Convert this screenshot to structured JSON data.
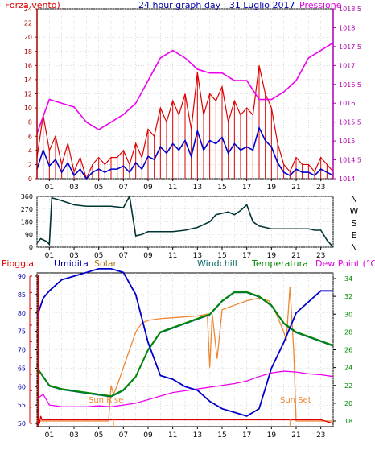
{
  "panel1": {
    "title": "24 hour graph day : 31 Luglio 2017",
    "left_label": "Forza vento)",
    "right_label": "Pressione",
    "left_ticks": [
      "0",
      "2",
      "4",
      "6",
      "8",
      "10",
      "12",
      "14",
      "16",
      "18",
      "20",
      "22",
      "24"
    ],
    "right_ticks": [
      "1014",
      "1014.5",
      "1015",
      "1015.5",
      "1016",
      "1016.5",
      "1017",
      "1017.5",
      "1018",
      "1018.5"
    ],
    "x_ticks": [
      "01",
      "03",
      "05",
      "07",
      "09",
      "11",
      "13",
      "15",
      "17",
      "19",
      "21",
      "23"
    ],
    "colors": {
      "wind_gust": "#dd0000",
      "wind_avg": "#0000cc",
      "pressure": "#ee00ee",
      "left_axis": "#aa0000",
      "right_axis": "#aa00aa"
    }
  },
  "panel2": {
    "left_ticks": [
      "0",
      "90",
      "180",
      "270",
      "360"
    ],
    "right_labels": [
      "N",
      "W",
      "S",
      "E",
      "N"
    ],
    "x_ticks": [
      "01",
      "03",
      "05",
      "07",
      "09",
      "11",
      "13",
      "15",
      "17",
      "19",
      "21",
      "23"
    ],
    "colors": {
      "direction": "#003333"
    }
  },
  "panel3": {
    "labels": {
      "pioggia": "Pioggia",
      "umidita": "Umidita",
      "solar": "Solar",
      "windchill": "Windchill",
      "temperatura": "Temperatura",
      "dewpoint": "Dew Point (°C)",
      "sunrise": "Sun Rise",
      "sunset": "Sun Set"
    },
    "left_ticks": [
      "50",
      "55",
      "60",
      "65",
      "70",
      "75",
      "80",
      "85",
      "90"
    ],
    "right_ticks": [
      "18",
      "20",
      "22",
      "24",
      "26",
      "28",
      "30",
      "32",
      "34"
    ],
    "x_ticks": [
      "01",
      "03",
      "05",
      "07",
      "09",
      "11",
      "13",
      "15",
      "17",
      "19",
      "21",
      "23"
    ],
    "colors": {
      "rain": "#dd0000",
      "humidity": "#0000cc",
      "solar": "#ee8833",
      "windchill": "#006666",
      "temperature": "#008800",
      "dewpoint": "#ee00ee"
    }
  },
  "chart_data": [
    {
      "type": "line",
      "title": "24 hour graph day : 31 Luglio 2017",
      "x_unit": "hour",
      "xlim": [
        0,
        24
      ],
      "ylim_left": [
        0,
        24
      ],
      "ylim_right": [
        1014,
        1018.5
      ],
      "series": [
        {
          "name": "Forza vento)",
          "axis": "left",
          "x": [
            0,
            0.5,
            1,
            1.5,
            2,
            2.5,
            3,
            3.5,
            4,
            4.5,
            5,
            5.5,
            6,
            6.5,
            7,
            7.5,
            8,
            8.5,
            9,
            9.5,
            10,
            10.5,
            11,
            11.5,
            12,
            12.5,
            13,
            13.5,
            14,
            14.5,
            15,
            15.5,
            16,
            16.5,
            17,
            17.5,
            18,
            18.5,
            19,
            19.5,
            20,
            20.5,
            21,
            21.5,
            22,
            22.5,
            23,
            23.5,
            24
          ],
          "values": [
            3,
            9,
            4,
            6,
            2,
            5,
            1,
            3,
            0,
            2,
            3,
            2,
            3,
            3,
            4,
            2,
            5,
            3,
            7,
            6,
            10,
            8,
            11,
            9,
            12,
            7,
            15,
            9,
            12,
            11,
            13,
            8,
            11,
            9,
            10,
            9,
            16,
            12,
            10,
            5,
            2,
            1,
            3,
            2,
            2,
            1,
            3,
            2,
            1
          ]
        },
        {
          "name": "Pressione",
          "axis": "right",
          "x": [
            0,
            1,
            2,
            3,
            4,
            5,
            6,
            7,
            8,
            9,
            10,
            11,
            12,
            13,
            14,
            15,
            16,
            17,
            18,
            19,
            20,
            21,
            22,
            23,
            24
          ],
          "values": [
            1015.2,
            1016.1,
            1016.0,
            1015.9,
            1015.5,
            1015.3,
            1015.5,
            1015.7,
            1016.0,
            1016.6,
            1017.2,
            1017.4,
            1017.2,
            1016.9,
            1016.8,
            1016.8,
            1016.6,
            1016.6,
            1016.1,
            1016.1,
            1016.3,
            1016.6,
            1017.2,
            1017.4,
            1017.6
          ]
        }
      ]
    },
    {
      "type": "line",
      "x_unit": "hour",
      "xlim": [
        0,
        24
      ],
      "ylim": [
        0,
        360
      ],
      "series": [
        {
          "name": "direction",
          "x": [
            0,
            0.3,
            0.8,
            1.0,
            1.2,
            2,
            3,
            4,
            5,
            6,
            7,
            7.3,
            7.5,
            8,
            8.5,
            9,
            10,
            11,
            12,
            13,
            14,
            14.5,
            15,
            15.5,
            16,
            16.5,
            17,
            17.5,
            18,
            19,
            20,
            21,
            22,
            22.5,
            23,
            23.5,
            24
          ],
          "values": [
            30,
            60,
            40,
            20,
            350,
            330,
            300,
            290,
            290,
            290,
            280,
            330,
            360,
            80,
            90,
            110,
            110,
            110,
            120,
            140,
            180,
            230,
            240,
            250,
            230,
            260,
            300,
            180,
            150,
            130,
            130,
            130,
            130,
            120,
            120,
            50,
            0
          ]
        }
      ]
    },
    {
      "type": "line",
      "x_unit": "hour",
      "xlim": [
        0,
        24
      ],
      "ylim_left": [
        50,
        90
      ],
      "ylim_right": [
        18,
        34
      ],
      "annotations": [
        "Sun Rise",
        "Sun Set"
      ],
      "series": [
        {
          "name": "Umidita",
          "axis": "left",
          "x": [
            0,
            0.5,
            1,
            2,
            3,
            4,
            5,
            6,
            7,
            8,
            9,
            10,
            11,
            12,
            13,
            14,
            15,
            16,
            17,
            18,
            19,
            20,
            21,
            22,
            23,
            24
          ],
          "values": [
            79,
            84,
            86,
            89,
            90,
            91,
            92,
            92,
            91,
            85,
            72,
            63,
            62,
            60,
            59,
            56,
            54,
            53,
            52,
            54,
            65,
            72,
            80,
            83,
            86,
            86
          ]
        },
        {
          "name": "Temperatura",
          "axis": "right",
          "x": [
            0,
            1,
            2,
            3,
            4,
            5,
            6,
            7,
            8,
            9,
            10,
            11,
            12,
            13,
            14,
            15,
            16,
            17,
            18,
            19,
            20,
            21,
            22,
            23,
            24
          ],
          "values": [
            24,
            22,
            21.6,
            21.4,
            21.2,
            21,
            20.8,
            21.5,
            23,
            26,
            28,
            28.5,
            29,
            29.5,
            30,
            31.5,
            32.5,
            32.5,
            32,
            31,
            29,
            28,
            27.5,
            27,
            26.5
          ]
        },
        {
          "name": "Windchill",
          "axis": "right",
          "x": [
            0,
            1,
            2,
            3,
            4,
            5,
            6,
            7,
            8,
            9,
            10,
            11,
            12,
            13,
            14,
            15,
            16,
            17,
            18,
            19,
            20,
            21,
            22,
            23,
            24
          ],
          "values": [
            24,
            22,
            21.6,
            21.4,
            21.2,
            21,
            20.8,
            21.5,
            23,
            26,
            28,
            28.5,
            29,
            29.5,
            30,
            31.5,
            32.5,
            32.5,
            32,
            31,
            29,
            28,
            27.5,
            27,
            26.5
          ]
        },
        {
          "name": "Dew Point (°C)",
          "axis": "right",
          "x": [
            0,
            0.5,
            1,
            2,
            3,
            4,
            5,
            6,
            7,
            8,
            9,
            10,
            11,
            12,
            13,
            14,
            15,
            16,
            17,
            18,
            19,
            20,
            21,
            22,
            23,
            24
          ],
          "values": [
            20.5,
            21,
            19.8,
            19.6,
            19.6,
            19.6,
            19.7,
            19.6,
            19.8,
            20,
            20.4,
            20.8,
            21.2,
            21.4,
            21.6,
            21.8,
            22,
            22.2,
            22.5,
            23,
            23.4,
            23.6,
            23.5,
            23.3,
            23.2,
            23
          ]
        },
        {
          "name": "Solar",
          "axis": "right",
          "x": [
            0,
            5.5,
            5.8,
            6.0,
            6.2,
            6.5,
            7,
            7.5,
            8,
            8.5,
            9,
            10,
            11,
            12,
            13,
            13.8,
            14.0,
            14.2,
            14.6,
            15,
            16,
            17,
            18,
            18.8,
            19.4,
            20,
            20.2,
            20.5,
            20.8,
            21,
            22,
            23,
            24
          ],
          "values": [
            18,
            18,
            18,
            22,
            21,
            22,
            24,
            26,
            28,
            29,
            29.3,
            29.5,
            29.6,
            29.7,
            29.8,
            30,
            24,
            30,
            25,
            30.5,
            31,
            31.5,
            31.8,
            31.5,
            30,
            28,
            27,
            33,
            26,
            18,
            18,
            18,
            18
          ]
        },
        {
          "name": "Pioggia",
          "axis": "left",
          "x": [
            0,
            0.2,
            0.3,
            0.4,
            1,
            23,
            24
          ],
          "values": [
            50,
            50,
            52,
            51,
            51,
            51,
            50
          ]
        }
      ]
    }
  ]
}
